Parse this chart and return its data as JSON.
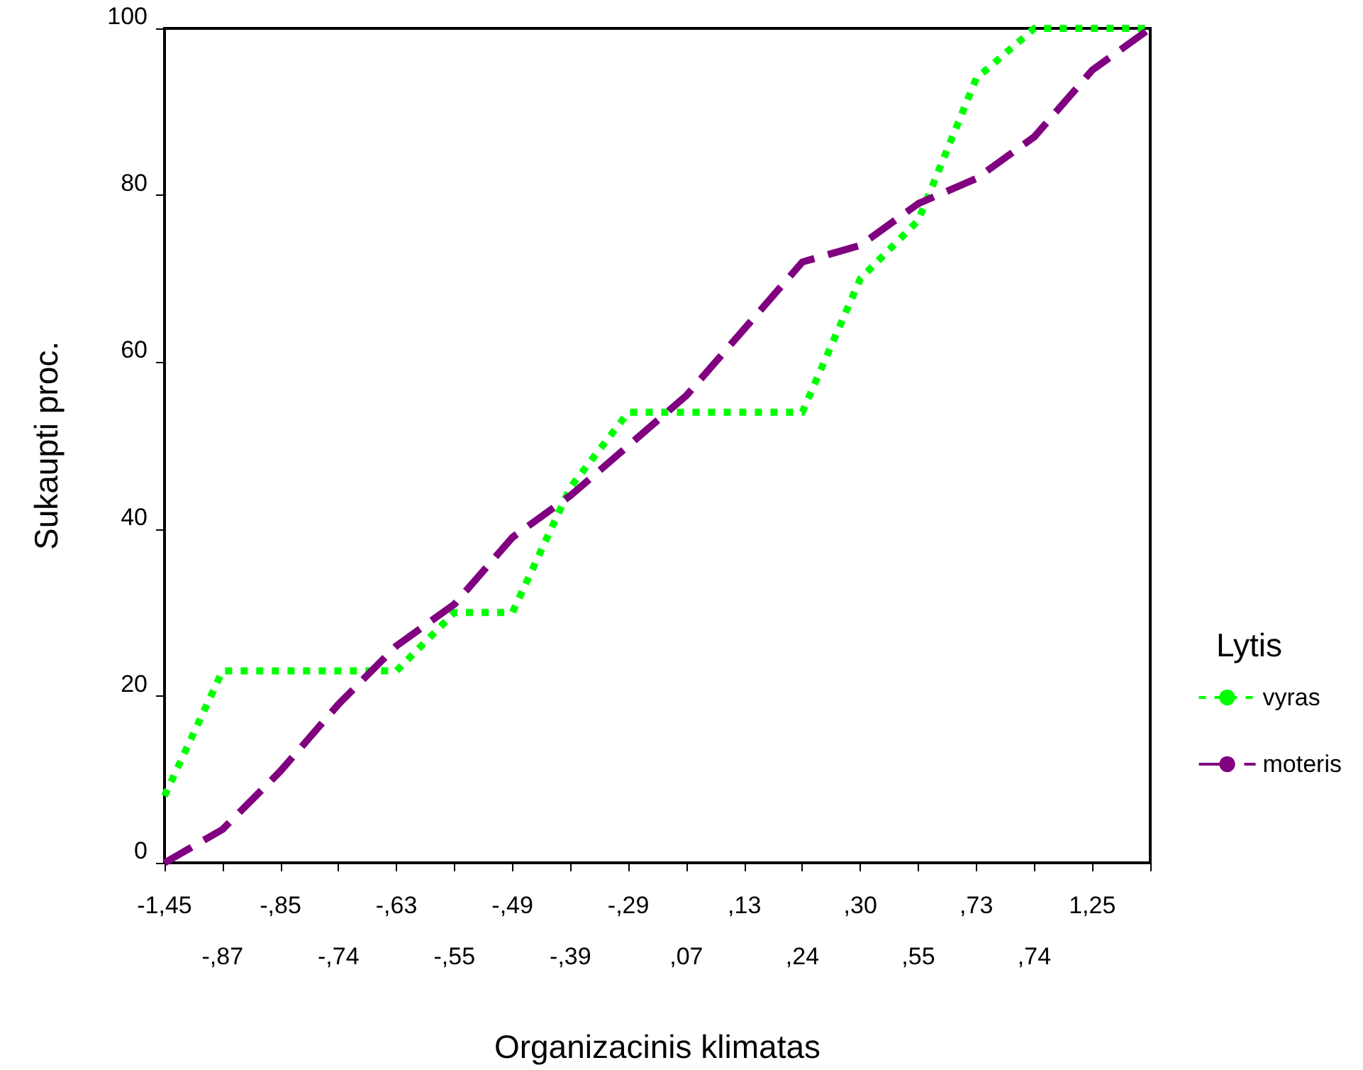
{
  "chart_data": {
    "type": "line",
    "xlabel": "Organizacinis klimatas",
    "ylabel": "Sukaupti proc.",
    "legend_title": "Lytis",
    "legend": "right",
    "categories": [
      "-1,45",
      "-,87",
      "-,85",
      "-,74",
      "-,63",
      "-,55",
      "-,49",
      "-,39",
      "-,29",
      ",07",
      ",13",
      ",24",
      ",30",
      ",55",
      ",73",
      ",74",
      "1,25",
      null
    ],
    "series": [
      {
        "name": "vyras",
        "color": "#00ff00",
        "line_style": "dotted",
        "values": [
          8,
          23,
          23,
          23,
          23,
          30,
          30,
          45,
          54,
          54,
          54,
          54,
          70,
          77,
          94,
          100,
          100,
          100
        ]
      },
      {
        "name": "moteris",
        "color": "#800080",
        "line_style": "dashed",
        "values": [
          0,
          4,
          11,
          19,
          26,
          31,
          39,
          44,
          50,
          56,
          64,
          72,
          74,
          79,
          82,
          87,
          95,
          100
        ]
      }
    ],
    "ylim": [
      0,
      100
    ],
    "yticks": [
      0,
      20,
      40,
      60,
      80,
      100
    ],
    "grid": false,
    "marker": "none"
  }
}
